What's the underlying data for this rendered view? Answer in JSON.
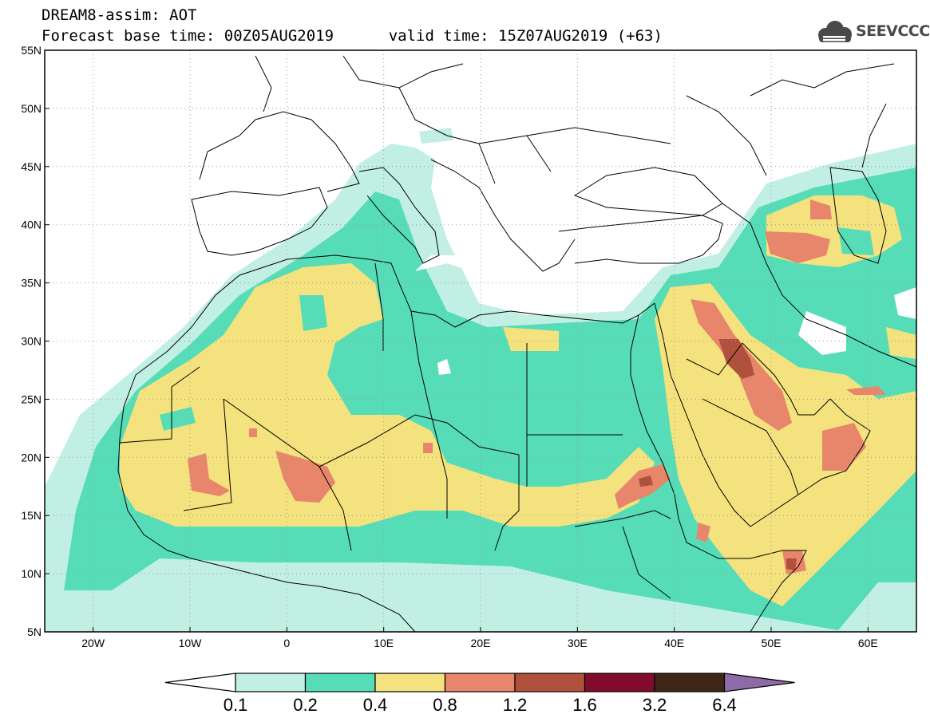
{
  "header": {
    "line1": "DREAM8-assim: AOT",
    "forecast_label": "Forecast base time:",
    "base_time": "00Z05AUG2019",
    "valid_label": "valid time:",
    "valid_time": "15Z07AUG2019 (+63)"
  },
  "logo": {
    "text": "SEEVCCC"
  },
  "map": {
    "lon_range": [
      -25,
      65
    ],
    "lat_range": [
      5,
      55
    ],
    "lon_ticks": [
      {
        "value": -20,
        "label": "20W"
      },
      {
        "value": -10,
        "label": "10W"
      },
      {
        "value": 0,
        "label": "0"
      },
      {
        "value": 10,
        "label": "10E"
      },
      {
        "value": 20,
        "label": "20E"
      },
      {
        "value": 30,
        "label": "30E"
      },
      {
        "value": 40,
        "label": "40E"
      },
      {
        "value": 50,
        "label": "50E"
      },
      {
        "value": 60,
        "label": "60E"
      }
    ],
    "lat_ticks": [
      {
        "value": 55,
        "label": "55N"
      },
      {
        "value": 50,
        "label": "50N"
      },
      {
        "value": 45,
        "label": "45N"
      },
      {
        "value": 40,
        "label": "40N"
      },
      {
        "value": 35,
        "label": "35N"
      },
      {
        "value": 30,
        "label": "30N"
      },
      {
        "value": 25,
        "label": "25N"
      },
      {
        "value": 20,
        "label": "20N"
      },
      {
        "value": 15,
        "label": "15N"
      },
      {
        "value": 10,
        "label": "10N"
      },
      {
        "value": 5,
        "label": "5N"
      }
    ],
    "grid": "dotted"
  },
  "colorbar": {
    "levels": [
      "0.1",
      "0.2",
      "0.4",
      "0.8",
      "1.2",
      "1.6",
      "3.2",
      "6.4"
    ],
    "colors": [
      "#ffffff",
      "#c2efe4",
      "#56ddb7",
      "#f4e27e",
      "#e7866a",
      "#b0513e",
      "#820a2a",
      "#3e2717",
      "#8e6aa8"
    ]
  }
}
